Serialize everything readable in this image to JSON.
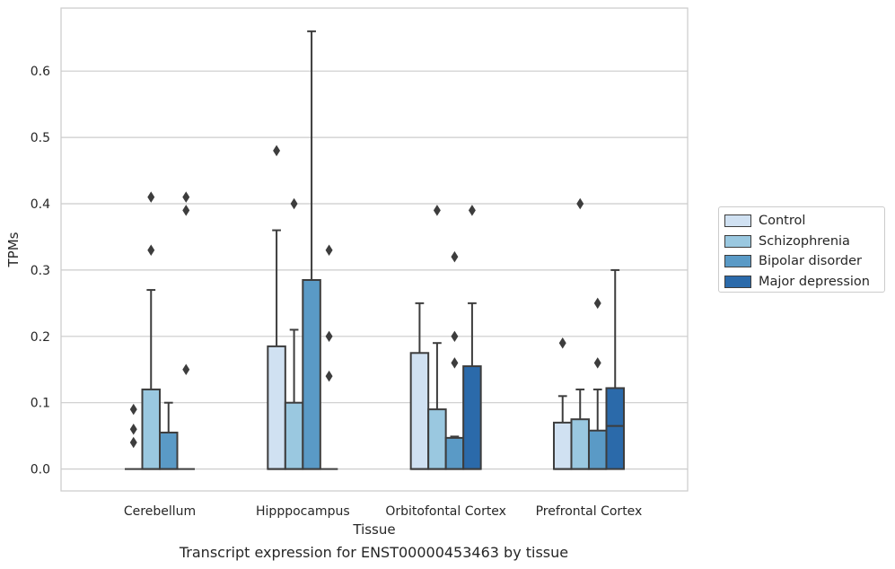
{
  "chart_data": {
    "type": "box",
    "title": "Transcript expression for ENST00000453463 by tissue",
    "xlabel": "Tissue",
    "ylabel": "TPMs",
    "ylim": [
      -0.033,
      0.695
    ],
    "yticks": [
      0.0,
      0.1,
      0.2,
      0.3,
      0.4,
      0.5,
      0.6
    ],
    "ytick_labels": [
      "0.0",
      "0.1",
      "0.2",
      "0.3",
      "0.4",
      "0.5",
      "0.6"
    ],
    "grid": true,
    "legend_position": "right",
    "categories": [
      "Cerebellum",
      "Hipppocampus",
      "Orbitofontal Cortex",
      "Prefrontal Cortex"
    ],
    "series": [
      {
        "name": "Control",
        "color": "#d0e1f2",
        "boxes": [
          {
            "q1": 0.0,
            "median": 0.0,
            "q3": 0.0,
            "whisker_low": 0.0,
            "whisker_high": 0.0,
            "outliers": [
              0.04,
              0.06,
              0.09
            ]
          },
          {
            "q1": 0.0,
            "median": 0.0,
            "q3": 0.185,
            "whisker_low": 0.0,
            "whisker_high": 0.36,
            "outliers": [
              0.48
            ]
          },
          {
            "q1": 0.0,
            "median": 0.0,
            "q3": 0.175,
            "whisker_low": 0.0,
            "whisker_high": 0.25,
            "outliers": []
          },
          {
            "q1": 0.0,
            "median": 0.0,
            "q3": 0.07,
            "whisker_low": 0.0,
            "whisker_high": 0.11,
            "outliers": [
              0.19
            ]
          }
        ]
      },
      {
        "name": "Schizophrenia",
        "color": "#9ac8e0",
        "boxes": [
          {
            "q1": 0.0,
            "median": 0.0,
            "q3": 0.12,
            "whisker_low": 0.0,
            "whisker_high": 0.27,
            "outliers": [
              0.33,
              0.41
            ]
          },
          {
            "q1": 0.0,
            "median": 0.0,
            "q3": 0.1,
            "whisker_low": 0.0,
            "whisker_high": 0.21,
            "outliers": [
              0.4
            ]
          },
          {
            "q1": 0.0,
            "median": 0.0,
            "q3": 0.09,
            "whisker_low": 0.0,
            "whisker_high": 0.19,
            "outliers": [
              0.39
            ]
          },
          {
            "q1": 0.0,
            "median": 0.0,
            "q3": 0.075,
            "whisker_low": 0.0,
            "whisker_high": 0.12,
            "outliers": [
              0.4
            ]
          }
        ]
      },
      {
        "name": "Bipolar disorder",
        "color": "#5a9ac6",
        "boxes": [
          {
            "q1": 0.0,
            "median": 0.0,
            "q3": 0.055,
            "whisker_low": 0.0,
            "whisker_high": 0.1,
            "outliers": []
          },
          {
            "q1": 0.0,
            "median": 0.0,
            "q3": 0.285,
            "whisker_low": 0.0,
            "whisker_high": 0.66,
            "outliers": []
          },
          {
            "q1": 0.0,
            "median": 0.0,
            "q3": 0.047,
            "whisker_low": 0.0,
            "whisker_high": 0.049,
            "outliers": [
              0.16,
              0.2,
              0.32
            ]
          },
          {
            "q1": 0.0,
            "median": 0.0,
            "q3": 0.058,
            "whisker_low": 0.0,
            "whisker_high": 0.12,
            "outliers": [
              0.16,
              0.25
            ]
          }
        ]
      },
      {
        "name": "Major depression",
        "color": "#2b6aaa",
        "boxes": [
          {
            "q1": 0.0,
            "median": 0.0,
            "q3": 0.0,
            "whisker_low": 0.0,
            "whisker_high": 0.0,
            "outliers": [
              0.15,
              0.39,
              0.41
            ]
          },
          {
            "q1": 0.0,
            "median": 0.0,
            "q3": 0.0,
            "whisker_low": 0.0,
            "whisker_high": 0.0,
            "outliers": [
              0.14,
              0.2,
              0.33
            ]
          },
          {
            "q1": 0.0,
            "median": 0.0,
            "q3": 0.155,
            "whisker_low": 0.0,
            "whisker_high": 0.25,
            "outliers": [
              0.39
            ]
          },
          {
            "q1": 0.0,
            "median": 0.065,
            "q3": 0.122,
            "whisker_low": 0.0,
            "whisker_high": 0.3,
            "outliers": []
          }
        ]
      }
    ]
  }
}
